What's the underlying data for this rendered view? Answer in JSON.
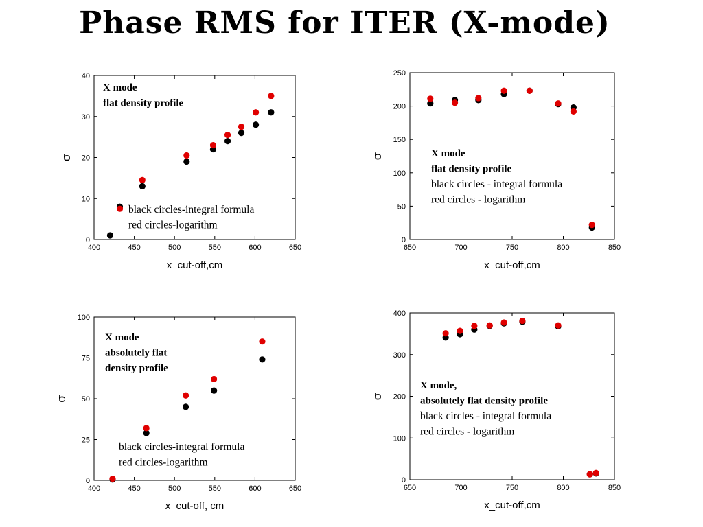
{
  "slide": {
    "title": "Phase RMS for ITER (X-mode)"
  },
  "colors": {
    "integral": "#000000",
    "logarithm": "#e00000"
  },
  "chart_data": [
    {
      "type": "scatter",
      "xlabel": "x_cut-off,cm",
      "ylabel": "σ",
      "xlim": [
        400,
        650
      ],
      "ylim": [
        0,
        40
      ],
      "xticks": [
        400,
        450,
        500,
        550,
        600,
        650
      ],
      "yticks": [
        0,
        10,
        20,
        30,
        40
      ],
      "annotations": [
        {
          "text": "X mode",
          "bold": true
        },
        {
          "text": "flat density profile",
          "bold": true
        },
        {
          "text": "black circles-integral formula",
          "bold": false
        },
        {
          "text": "red circles-logarithm",
          "bold": false
        }
      ],
      "series": [
        {
          "color": "#000000",
          "points": [
            [
              420,
              1
            ],
            [
              432,
              8
            ],
            [
              460,
              13
            ],
            [
              515,
              19
            ],
            [
              548,
              22
            ],
            [
              566,
              24
            ],
            [
              583,
              26
            ],
            [
              601,
              28
            ],
            [
              620,
              31
            ]
          ]
        },
        {
          "color": "#e00000",
          "points": [
            [
              432,
              7.5
            ],
            [
              460,
              14.5
            ],
            [
              515,
              20.5
            ],
            [
              548,
              23
            ],
            [
              566,
              25.5
            ],
            [
              583,
              27.5
            ],
            [
              601,
              31
            ],
            [
              620,
              35
            ]
          ]
        }
      ]
    },
    {
      "type": "scatter",
      "xlabel": "x_cut-off,cm",
      "ylabel": "σ",
      "xlim": [
        650,
        850
      ],
      "ylim": [
        0,
        250
      ],
      "xticks": [
        650,
        700,
        750,
        800,
        850
      ],
      "yticks": [
        0,
        50,
        100,
        150,
        200,
        250
      ],
      "annotations": [
        {
          "text": "X mode",
          "bold": true
        },
        {
          "text": "flat density profile",
          "bold": true
        },
        {
          "text": "black circles - integral formula",
          "bold": false
        },
        {
          "text": "red circles - logarithm",
          "bold": false
        }
      ],
      "series": [
        {
          "color": "#000000",
          "points": [
            [
              670,
              204
            ],
            [
              694,
              209
            ],
            [
              717,
              209
            ],
            [
              742,
              218
            ],
            [
              767,
              223
            ],
            [
              795,
              203
            ],
            [
              810,
              198
            ],
            [
              828,
              18
            ]
          ]
        },
        {
          "color": "#e00000",
          "points": [
            [
              670,
              211
            ],
            [
              694,
              205
            ],
            [
              717,
              212
            ],
            [
              742,
              223
            ],
            [
              767,
              223
            ],
            [
              795,
              204
            ],
            [
              810,
              192
            ],
            [
              828,
              22
            ]
          ]
        }
      ]
    },
    {
      "type": "scatter",
      "xlabel": "x_cut-off, cm",
      "ylabel": "σ",
      "xlim": [
        400,
        650
      ],
      "ylim": [
        0,
        100
      ],
      "xticks": [
        400,
        450,
        500,
        550,
        600,
        650
      ],
      "yticks": [
        0,
        25,
        50,
        75,
        100
      ],
      "annotations": [
        {
          "text": "X mode",
          "bold": true
        },
        {
          "text": "absolutely flat",
          "bold": true
        },
        {
          "text": "density profile",
          "bold": true
        },
        {
          "text": "black circles-integral formula",
          "bold": false
        },
        {
          "text": "red circles-logarithm",
          "bold": false
        }
      ],
      "series": [
        {
          "color": "#000000",
          "points": [
            [
              423,
              0.5
            ],
            [
              465,
              29
            ],
            [
              514,
              45
            ],
            [
              549,
              55
            ],
            [
              609,
              74
            ]
          ]
        },
        {
          "color": "#e00000",
          "points": [
            [
              423,
              1
            ],
            [
              465,
              32
            ],
            [
              514,
              52
            ],
            [
              549,
              62
            ],
            [
              609,
              85
            ]
          ]
        }
      ]
    },
    {
      "type": "scatter",
      "xlabel": "x_cut-off,cm",
      "ylabel": "σ",
      "xlim": [
        650,
        850
      ],
      "ylim": [
        0,
        400
      ],
      "xticks": [
        650,
        700,
        750,
        800,
        850
      ],
      "yticks": [
        0,
        100,
        200,
        300,
        400
      ],
      "annotations": [
        {
          "text": "X mode,",
          "bold": true
        },
        {
          "text": "absolutely flat density profile",
          "bold": true
        },
        {
          "text": "black circles - integral formula",
          "bold": false
        },
        {
          "text": "red circles - logarithm",
          "bold": false
        }
      ],
      "series": [
        {
          "color": "#000000",
          "points": [
            [
              685,
              341
            ],
            [
              699,
              349
            ],
            [
              713,
              360
            ],
            [
              728,
              369
            ],
            [
              742,
              375
            ],
            [
              760,
              379
            ],
            [
              795,
              368
            ],
            [
              826,
              13
            ],
            [
              832,
              15
            ]
          ]
        },
        {
          "color": "#e00000",
          "points": [
            [
              685,
              351
            ],
            [
              699,
              357
            ],
            [
              713,
              369
            ],
            [
              728,
              370
            ],
            [
              742,
              377
            ],
            [
              760,
              381
            ],
            [
              795,
              370
            ],
            [
              826,
              13
            ],
            [
              832,
              16
            ]
          ]
        }
      ]
    }
  ]
}
